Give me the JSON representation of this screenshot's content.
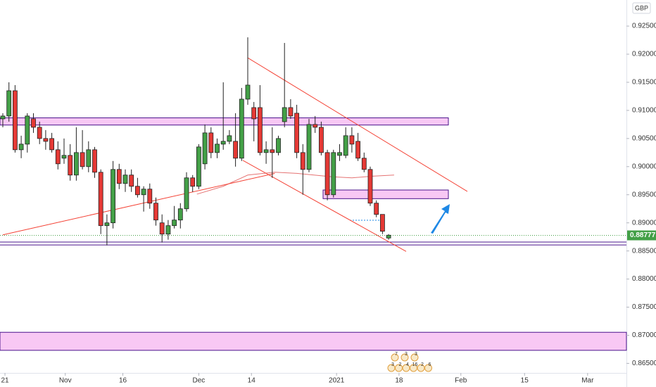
{
  "chart_data": {
    "type": "candlestick",
    "currency": "GBP",
    "up_color": "#43a047",
    "down_color": "#e53935",
    "open": [
      0.9085,
      0.909,
      0.9135,
      0.903,
      0.904,
      0.9085,
      0.907,
      0.905,
      0.905,
      0.903,
      0.9015,
      0.902,
      0.8985,
      0.9025,
      0.9,
      0.903,
      0.899,
      0.8895,
      0.89,
      0.8995,
      0.897,
      0.8985,
      0.8965,
      0.895,
      0.896,
      0.8935,
      0.89,
      0.888,
      0.8895,
      0.8905,
      0.8925,
      0.898,
      0.8965,
      0.9005,
      0.906,
      0.9025,
      0.904,
      0.9045,
      0.9045,
      0.9015,
      0.912,
      0.9105,
      0.9105,
      0.9025,
      0.903,
      0.9025,
      0.908,
      0.9105,
      0.9095,
      0.9025,
      0.8995,
      0.9075,
      0.907,
      0.9025,
      0.895,
      0.902,
      0.902,
      0.9055,
      0.9045,
      0.9015,
      0.8995,
      0.8935,
      0.8915,
      0.8873
    ],
    "high": [
      0.9095,
      0.915,
      0.9145,
      0.9055,
      0.9095,
      0.9095,
      0.908,
      0.9065,
      0.906,
      0.9045,
      0.905,
      0.904,
      0.907,
      0.9065,
      0.9045,
      0.9035,
      0.8995,
      0.8915,
      0.901,
      0.9005,
      0.8995,
      0.8995,
      0.898,
      0.8965,
      0.897,
      0.8945,
      0.8915,
      0.8905,
      0.893,
      0.8935,
      0.899,
      0.8985,
      0.904,
      0.9075,
      0.907,
      0.905,
      0.915,
      0.9065,
      0.9095,
      0.914,
      0.923,
      0.9115,
      0.9145,
      0.9045,
      0.907,
      0.9055,
      0.922,
      0.912,
      0.911,
      0.904,
      0.9085,
      0.909,
      0.908,
      0.903,
      0.903,
      0.904,
      0.907,
      0.907,
      0.906,
      0.9025,
      0.9,
      0.894,
      0.8915,
      0.888
    ],
    "low": [
      0.907,
      0.908,
      0.9025,
      0.9015,
      0.9025,
      0.906,
      0.904,
      0.903,
      0.9025,
      0.8995,
      0.9005,
      0.8975,
      0.8975,
      0.8995,
      0.899,
      0.898,
      0.888,
      0.886,
      0.889,
      0.896,
      0.8955,
      0.8955,
      0.8945,
      0.892,
      0.8925,
      0.8895,
      0.8865,
      0.887,
      0.889,
      0.889,
      0.892,
      0.8955,
      0.896,
      0.8995,
      0.9015,
      0.9015,
      0.903,
      0.904,
      0.9,
      0.901,
      0.911,
      0.9045,
      0.902,
      0.9005,
      0.898,
      0.902,
      0.907,
      0.9085,
      0.9015,
      0.895,
      0.899,
      0.906,
      0.902,
      0.894,
      0.8945,
      0.901,
      0.9015,
      0.9025,
      0.901,
      0.899,
      0.893,
      0.891,
      0.888,
      0.887
    ],
    "close": [
      0.909,
      0.9135,
      0.903,
      0.904,
      0.909,
      0.907,
      0.905,
      0.9045,
      0.903,
      0.9005,
      0.902,
      0.8985,
      0.9025,
      0.9,
      0.903,
      0.899,
      0.8895,
      0.89,
      0.8995,
      0.897,
      0.8985,
      0.8965,
      0.895,
      0.896,
      0.8935,
      0.8905,
      0.888,
      0.8895,
      0.8905,
      0.8925,
      0.898,
      0.8965,
      0.9035,
      0.906,
      0.9025,
      0.904,
      0.9045,
      0.9055,
      0.9015,
      0.912,
      0.9145,
      0.9085,
      0.9025,
      0.903,
      0.9025,
      0.905,
      0.9105,
      0.909,
      0.9025,
      0.8995,
      0.9075,
      0.907,
      0.9025,
      0.895,
      0.9025,
      0.9025,
      0.9055,
      0.904,
      0.9015,
      0.8995,
      0.8935,
      0.8915,
      0.8885,
      0.8878
    ],
    "xlim": [
      -0.46,
      101.84
    ],
    "ylim": [
      0.8633,
      0.92964
    ],
    "xticks": [
      {
        "value": 0.35,
        "label": "21"
      },
      {
        "value": 10.2,
        "label": "Nov"
      },
      {
        "value": 19.6,
        "label": "16"
      },
      {
        "value": 32,
        "label": "Dec"
      },
      {
        "value": 40.6,
        "label": "14"
      },
      {
        "value": 54.5,
        "label": "2021"
      },
      {
        "value": 64.7,
        "label": "18"
      },
      {
        "value": 74.8,
        "label": "Feb"
      },
      {
        "value": 85.2,
        "label": "15"
      },
      {
        "value": 95.5,
        "label": "Mar"
      }
    ],
    "yticks": [
      {
        "value": 0.925,
        "label": "0.92500"
      },
      {
        "value": 0.92,
        "label": "0.92000"
      },
      {
        "value": 0.915,
        "label": "0.91500"
      },
      {
        "value": 0.91,
        "label": "0.91000"
      },
      {
        "value": 0.905,
        "label": "0.90500"
      },
      {
        "value": 0.9,
        "label": "0.90000"
      },
      {
        "value": 0.895,
        "label": "0.89500"
      },
      {
        "value": 0.89,
        "label": "0.89000"
      },
      {
        "value": 0.885,
        "label": "0.88500"
      },
      {
        "value": 0.88,
        "label": "0.88000"
      },
      {
        "value": 0.875,
        "label": "0.87500"
      },
      {
        "value": 0.87,
        "label": "0.87000"
      },
      {
        "value": 0.865,
        "label": "0.86500"
      }
    ],
    "last_price": 0.88777,
    "zones": [
      {
        "y": [
          0.9074,
          0.90868
        ],
        "x": [
          -0.46,
          72.76
        ]
      },
      {
        "y": [
          0.8943,
          0.89584
        ],
        "x": [
          52.3,
          72.76
        ]
      },
      {
        "y": [
          0.86732,
          0.87053
        ],
        "x": [
          -0.46,
          101.84
        ]
      }
    ],
    "levels": [
      0.88658,
      0.88607
    ],
    "trendlines": [
      {
        "x": [
          40,
          75.86
        ],
        "y": [
          0.91935,
          0.89558
        ]
      },
      {
        "x": [
          39.2,
          65.86
        ],
        "y": [
          0.90111,
          0.88492
        ]
      },
      {
        "x": [
          0,
          44.4
        ],
        "y": [
          0.88787,
          0.89879
        ]
      }
    ],
    "ma": {
      "x": [
        31.7,
        36,
        40,
        44.4,
        48,
        53.6,
        57,
        60.4,
        63.9
      ],
      "y": [
        0.8951,
        0.8965,
        0.8985,
        0.899,
        0.8988,
        0.8982,
        0.898,
        0.8983,
        0.8985
      ]
    },
    "events": [
      "7",
      "3",
      "3",
      "3",
      "2",
      "4",
      "16",
      "2",
      "6"
    ]
  }
}
